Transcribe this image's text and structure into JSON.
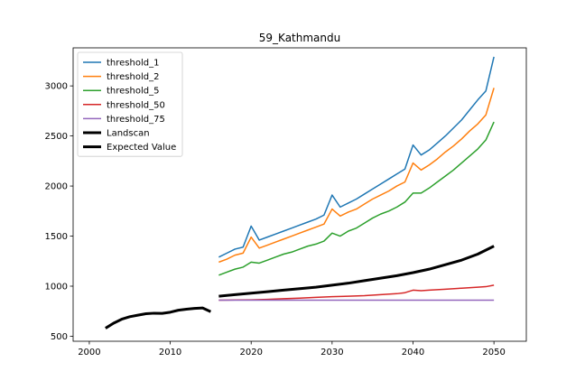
{
  "chart_data": {
    "type": "line",
    "title": "59_Kathmandu",
    "xlabel": "",
    "ylabel": "",
    "xlim": [
      1998,
      2054
    ],
    "ylim": [
      450,
      3380
    ],
    "xticks": [
      2000,
      2010,
      2020,
      2030,
      2040,
      2050
    ],
    "yticks": [
      500,
      1000,
      1500,
      2000,
      2500,
      3000
    ],
    "grid": false,
    "legend_position": "top-left",
    "series": [
      {
        "name": "threshold_1",
        "color": "#1f77b4",
        "width": 1.5,
        "x": [
          2016,
          2017,
          2018,
          2019,
          2020,
          2021,
          2022,
          2023,
          2024,
          2025,
          2026,
          2027,
          2028,
          2029,
          2030,
          2031,
          2032,
          2033,
          2034,
          2035,
          2036,
          2037,
          2038,
          2039,
          2040,
          2041,
          2042,
          2043,
          2044,
          2045,
          2046,
          2047,
          2048,
          2049,
          2050
        ],
        "y": [
          1290,
          1330,
          1370,
          1390,
          1600,
          1460,
          1490,
          1520,
          1550,
          1580,
          1610,
          1640,
          1670,
          1710,
          1910,
          1790,
          1830,
          1870,
          1920,
          1970,
          2020,
          2070,
          2120,
          2170,
          2410,
          2310,
          2360,
          2430,
          2500,
          2580,
          2660,
          2760,
          2860,
          2950,
          3290
        ]
      },
      {
        "name": "threshold_2",
        "color": "#ff7f0e",
        "width": 1.5,
        "x": [
          2016,
          2017,
          2018,
          2019,
          2020,
          2021,
          2022,
          2023,
          2024,
          2025,
          2026,
          2027,
          2028,
          2029,
          2030,
          2031,
          2032,
          2033,
          2034,
          2035,
          2036,
          2037,
          2038,
          2039,
          2040,
          2041,
          2042,
          2043,
          2044,
          2045,
          2046,
          2047,
          2048,
          2049,
          2050
        ],
        "y": [
          1240,
          1270,
          1310,
          1330,
          1490,
          1380,
          1410,
          1440,
          1470,
          1500,
          1530,
          1560,
          1590,
          1620,
          1770,
          1700,
          1740,
          1770,
          1820,
          1870,
          1910,
          1950,
          2000,
          2040,
          2230,
          2160,
          2210,
          2270,
          2340,
          2400,
          2470,
          2550,
          2620,
          2710,
          2980
        ]
      },
      {
        "name": "threshold_5",
        "color": "#2ca02c",
        "width": 1.5,
        "x": [
          2016,
          2017,
          2018,
          2019,
          2020,
          2021,
          2022,
          2023,
          2024,
          2025,
          2026,
          2027,
          2028,
          2029,
          2030,
          2031,
          2032,
          2033,
          2034,
          2035,
          2036,
          2037,
          2038,
          2039,
          2040,
          2041,
          2042,
          2043,
          2044,
          2045,
          2046,
          2047,
          2048,
          2049,
          2050
        ],
        "y": [
          1110,
          1140,
          1170,
          1190,
          1240,
          1230,
          1260,
          1290,
          1320,
          1340,
          1370,
          1400,
          1420,
          1450,
          1530,
          1500,
          1550,
          1580,
          1630,
          1680,
          1720,
          1750,
          1790,
          1840,
          1930,
          1930,
          1980,
          2040,
          2100,
          2160,
          2230,
          2300,
          2370,
          2460,
          2640
        ]
      },
      {
        "name": "threshold_50",
        "color": "#d62728",
        "width": 1.5,
        "x": [
          2016,
          2018,
          2020,
          2022,
          2024,
          2026,
          2028,
          2030,
          2032,
          2034,
          2036,
          2038,
          2039,
          2040,
          2041,
          2042,
          2044,
          2046,
          2048,
          2049,
          2050
        ],
        "y": [
          860,
          862,
          864,
          868,
          875,
          880,
          888,
          895,
          900,
          905,
          915,
          925,
          935,
          960,
          955,
          960,
          970,
          980,
          990,
          995,
          1010
        ]
      },
      {
        "name": "threshold_75",
        "color": "#9467bd",
        "width": 1.5,
        "x": [
          2016,
          2050
        ],
        "y": [
          860,
          860
        ]
      },
      {
        "name": "Landscan",
        "color": "#000000",
        "width": 3,
        "x": [
          2002,
          2003,
          2004,
          2005,
          2006,
          2007,
          2008,
          2009,
          2010,
          2011,
          2012,
          2013,
          2014,
          2015
        ],
        "y": [
          580,
          630,
          670,
          695,
          710,
          725,
          730,
          728,
          740,
          760,
          770,
          778,
          782,
          745
        ]
      },
      {
        "name": "Expected Value",
        "color": "#000000",
        "width": 3,
        "x": [
          2016,
          2018,
          2020,
          2022,
          2024,
          2026,
          2028,
          2030,
          2032,
          2034,
          2036,
          2038,
          2040,
          2042,
          2044,
          2046,
          2048,
          2050
        ],
        "y": [
          900,
          915,
          930,
          945,
          960,
          975,
          990,
          1010,
          1030,
          1055,
          1080,
          1105,
          1135,
          1170,
          1215,
          1260,
          1320,
          1400
        ]
      }
    ]
  }
}
